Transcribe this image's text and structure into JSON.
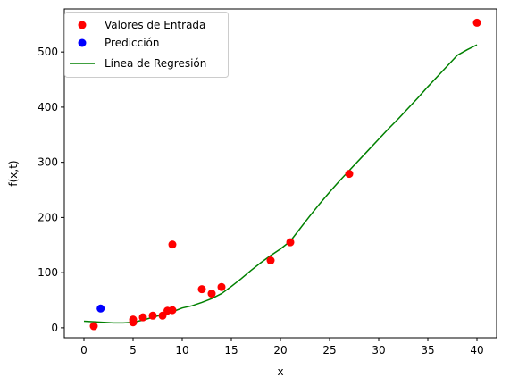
{
  "chart_data": {
    "type": "scatter",
    "xlabel": "x",
    "ylabel": "f(x,t)",
    "xlim": [
      -2.0,
      42.0
    ],
    "ylim": [
      -18,
      578
    ],
    "xticks": [
      0,
      5,
      10,
      15,
      20,
      25,
      30,
      35,
      40
    ],
    "yticks": [
      0,
      100,
      200,
      300,
      400,
      500
    ],
    "grid": false,
    "legend_position": "top-left",
    "series": [
      {
        "name": "Valores de Entrada",
        "kind": "scatter",
        "color": "#ff0000",
        "x": [
          1,
          5,
          5,
          6,
          7,
          8,
          8.5,
          9,
          9,
          12,
          13,
          14,
          19,
          21,
          27,
          40
        ],
        "y": [
          3,
          10,
          15,
          19,
          22,
          22,
          31,
          32,
          151,
          70,
          62,
          74,
          122,
          155,
          279,
          553
        ]
      },
      {
        "name": "Predicción",
        "kind": "scatter",
        "color": "#0000ff",
        "x": [
          1.7
        ],
        "y": [
          35
        ]
      },
      {
        "name": "Línea de Regresión",
        "kind": "line",
        "color": "#008000",
        "x": [
          0,
          1,
          2,
          3,
          4,
          5,
          6,
          7,
          8,
          9,
          10,
          11,
          12,
          13,
          14,
          15,
          16,
          17,
          18,
          19,
          20,
          21,
          22,
          23,
          24,
          25,
          26,
          27,
          28,
          29,
          30,
          31,
          32,
          33,
          34,
          35,
          36,
          37,
          38,
          39,
          40
        ],
        "y": [
          12,
          11,
          10,
          9,
          9,
          10,
          14,
          19,
          24,
          29,
          36,
          40,
          46,
          53,
          62,
          75,
          89,
          104,
          118,
          131,
          143,
          157,
          180,
          203,
          225,
          246,
          266,
          285,
          304,
          323,
          342,
          361,
          379,
          398,
          417,
          437,
          456,
          475,
          494,
          504,
          513
        ]
      }
    ]
  }
}
